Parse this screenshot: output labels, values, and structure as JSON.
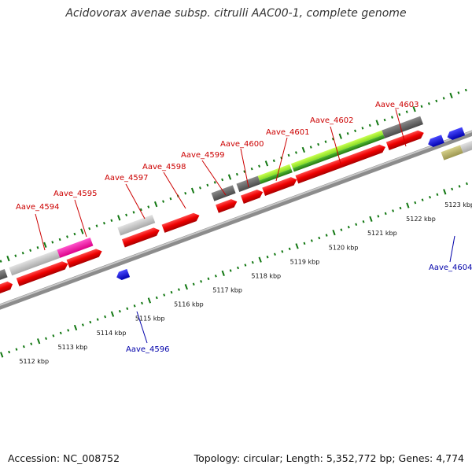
{
  "title": "Acidovorax avenae subsp. citrulli AAC00-1, complete genome",
  "footer": {
    "accession": "Accession: NC_008752",
    "info": "Topology: circular; Length: 5,352,772 bp; Genes: 4,774"
  },
  "colors": {
    "forward_gene_label": "#cc0000",
    "reverse_gene_label": "#0000aa",
    "cds": "#ee0000",
    "blue_cds": "#0000dd",
    "tick": "#117711",
    "backbone": "#888888"
  },
  "scale_labels": [
    "5112 kbp",
    "5113 kbp",
    "5114 kbp",
    "5115 kbp",
    "5116 kbp",
    "5117 kbp",
    "5118 kbp",
    "5119 kbp",
    "5120 kbp",
    "5121 kbp",
    "5122 kbp",
    "5123 kbp"
  ],
  "gene_labels_top": [
    "Aave_4594",
    "Aave_4595",
    "Aave_4597",
    "Aave_4598",
    "Aave_4599",
    "Aave_4600",
    "Aave_4601",
    "Aave_4602",
    "Aave_4603"
  ],
  "gene_labels_bottom": [
    "Aave_4596",
    "Aave_4604"
  ]
}
